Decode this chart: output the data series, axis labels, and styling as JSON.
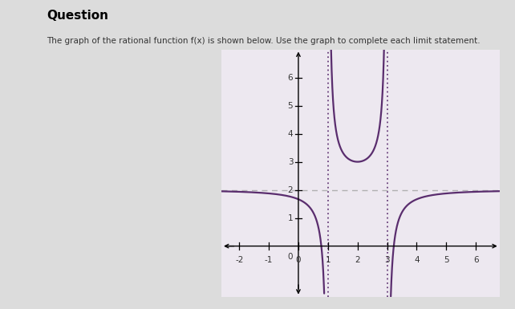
{
  "title": "Question",
  "subtitle": "The graph of the rational function f(x) is shown below. Use the graph to complete each limit statement.",
  "bg_color": "#dcdcdc",
  "plot_bg_color": "#ede8f0",
  "curve_color": "#5a2d6e",
  "asymptote_color": "#5a2d6e",
  "dashed_color": "#aaaaaa",
  "va1": 1.0,
  "va2": 3.0,
  "ha": 2.0,
  "xlim": [
    -2.6,
    6.8
  ],
  "ylim": [
    -1.8,
    7.0
  ],
  "xticks": [
    -2,
    -1,
    0,
    1,
    2,
    3,
    4,
    5,
    6
  ],
  "yticks": [
    1,
    2,
    3,
    4,
    5,
    6
  ],
  "figwidth": 6.42,
  "figheight": 3.85
}
